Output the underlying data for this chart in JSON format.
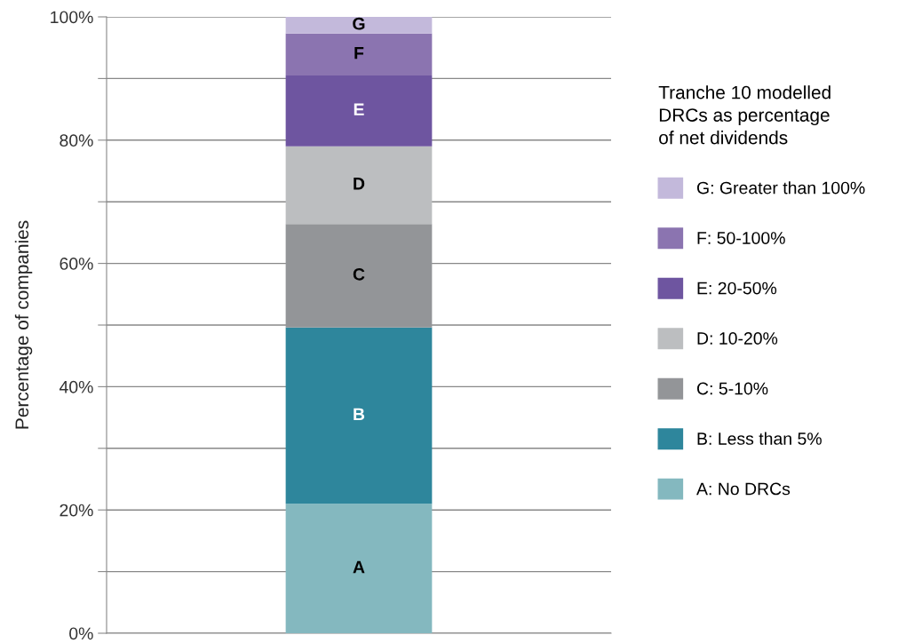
{
  "chart_data": {
    "type": "bar",
    "stacked": true,
    "categories": [
      null
    ],
    "ylabel": "Percentage of companies",
    "legend_title": "Tranche 10 modelled\nDRCs as percentage\nof net dividends",
    "ylim": [
      0,
      100
    ],
    "yticks": [
      {
        "value": 0,
        "label": "0%"
      },
      {
        "value": 10,
        "label": null
      },
      {
        "value": 20,
        "label": "20%"
      },
      {
        "value": 30,
        "label": null
      },
      {
        "value": 40,
        "label": "40%"
      },
      {
        "value": 50,
        "label": null
      },
      {
        "value": 60,
        "label": "60%"
      },
      {
        "value": 70,
        "label": null
      },
      {
        "value": 80,
        "label": "80%"
      },
      {
        "value": 90,
        "label": null
      },
      {
        "value": 100,
        "label": "100%"
      }
    ],
    "grid": "y",
    "legend": "right",
    "series": [
      {
        "name": "A: No DRCs",
        "color": "#84b8bf",
        "values": [
          21.0
        ],
        "value_labels": [
          "A"
        ]
      },
      {
        "name": "B: Less than 5%",
        "color": "#2e869c",
        "values": [
          28.6
        ],
        "value_labels": [
          "B"
        ]
      },
      {
        "name": "C: 5-10%",
        "color": "#939598",
        "values": [
          16.8
        ],
        "value_labels": [
          "C"
        ]
      },
      {
        "name": "D: 10-20%",
        "color": "#bcbec0",
        "values": [
          12.6
        ],
        "value_labels": [
          "D"
        ]
      },
      {
        "name": "E: 20-50%",
        "color": "#6e55a0",
        "values": [
          11.5
        ],
        "value_labels": [
          "E"
        ]
      },
      {
        "name": "F: 50-100%",
        "color": "#8b74b0",
        "values": [
          6.8
        ],
        "value_labels": [
          "F"
        ]
      },
      {
        "name": "G: Greater than 100%",
        "color": "#c3b9db",
        "values": [
          2.7
        ],
        "value_labels": [
          "G"
        ]
      }
    ]
  }
}
